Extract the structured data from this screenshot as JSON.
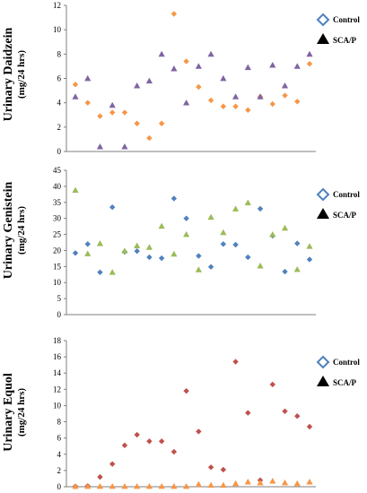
{
  "chart_data": [
    {
      "type": "scatter",
      "ylabel": "Urinary Daidzein",
      "yunit": "(mg/24 hrs)",
      "ylim": [
        0,
        12
      ],
      "yticks": [
        0,
        2,
        4,
        6,
        8,
        10,
        12
      ],
      "grid": false,
      "legend_position": "top-right",
      "series": [
        {
          "name": "Control",
          "marker": "diamond-outline",
          "color": "#4f81bd",
          "values": [
            5.5,
            4.0,
            2.9,
            3.2,
            3.2,
            2.3,
            1.1,
            2.3,
            11.3,
            7.4,
            5.3,
            4.2,
            3.7,
            3.7,
            3.4,
            4.5,
            3.9,
            4.6,
            4.1,
            7.2
          ]
        },
        {
          "name": "SCA/P",
          "marker": "triangle",
          "color": "#000000",
          "values": [
            4.5,
            6.0,
            0.4,
            3.8,
            0.4,
            5.4,
            5.8,
            8.0,
            6.8,
            4.0,
            7.0,
            8.0,
            6.0,
            4.5,
            6.9,
            4.5,
            7.1,
            5.4,
            7.0,
            8.0
          ]
        }
      ],
      "plotted": [
        {
          "color": "#f79646",
          "shape": "diamond",
          "values": [
            5.5,
            4.0,
            2.9,
            3.2,
            3.2,
            2.3,
            1.1,
            2.3,
            11.3,
            7.4,
            5.3,
            4.2,
            3.7,
            3.7,
            3.4,
            4.5,
            3.9,
            4.6,
            4.1,
            7.2
          ]
        },
        {
          "color": "#8064a2",
          "shape": "triangle",
          "values": [
            4.5,
            6.0,
            0.4,
            3.8,
            0.4,
            5.4,
            5.8,
            8.0,
            6.8,
            4.0,
            7.0,
            8.0,
            6.0,
            4.5,
            6.9,
            4.5,
            7.1,
            5.4,
            7.0,
            8.0
          ]
        }
      ]
    },
    {
      "type": "scatter",
      "ylabel": "Urinary Genistein",
      "yunit": "(mg/24 hrs)",
      "ylim": [
        0,
        45
      ],
      "yticks": [
        0,
        5,
        10,
        15,
        20,
        25,
        30,
        35,
        40,
        45
      ],
      "grid": false,
      "legend_position": "top-right",
      "series": [
        {
          "name": "Control",
          "marker": "diamond-outline",
          "color": "#4f81bd",
          "values": [
            19.2,
            22.0,
            13.2,
            33.5,
            19.6,
            19.8,
            17.9,
            17.6,
            36.2,
            30.0,
            18.3,
            14.9,
            22.0,
            21.8,
            17.9,
            33.0,
            24.6,
            13.4,
            22.2,
            17.2
          ]
        },
        {
          "name": "SCA/P",
          "marker": "triangle",
          "color": "#000000",
          "values": [
            38.8,
            19.0,
            22.2,
            13.2,
            19.9,
            21.5,
            21.0,
            27.6,
            18.9,
            25.0,
            14.0,
            30.4,
            25.6,
            33.0,
            34.9,
            15.2,
            25.0,
            27.0,
            14.1,
            21.3
          ]
        }
      ],
      "plotted": [
        {
          "color": "#4f81bd",
          "shape": "diamond",
          "values": [
            19.2,
            22.0,
            13.2,
            33.5,
            19.6,
            19.8,
            17.9,
            17.6,
            36.2,
            30.0,
            18.3,
            14.9,
            22.0,
            21.8,
            17.9,
            33.0,
            24.6,
            13.4,
            22.2,
            17.2
          ]
        },
        {
          "color": "#9bbb59",
          "shape": "triangle",
          "values": [
            38.8,
            19.0,
            22.2,
            13.2,
            19.9,
            21.5,
            21.0,
            27.6,
            18.9,
            25.0,
            14.0,
            30.4,
            25.6,
            33.0,
            34.9,
            15.2,
            25.0,
            27.0,
            14.1,
            21.3
          ]
        }
      ]
    },
    {
      "type": "scatter",
      "ylabel": "Urinary Equol",
      "yunit": "(mg/24 hrs)",
      "ylim": [
        0,
        18
      ],
      "yticks": [
        0,
        2,
        4,
        6,
        8,
        10,
        12,
        14,
        16,
        18
      ],
      "grid": false,
      "legend_position": "top-right",
      "series": [
        {
          "name": "Control",
          "marker": "diamond-outline",
          "color": "#4f81bd",
          "values": [
            0.05,
            0.1,
            1.2,
            2.8,
            5.1,
            6.4,
            5.6,
            5.6,
            4.3,
            11.8,
            6.8,
            2.4,
            2.1,
            15.4,
            9.1,
            0.8,
            12.6,
            9.3,
            8.7,
            7.4
          ]
        },
        {
          "name": "SCA/P",
          "marker": "triangle",
          "color": "#000000",
          "values": [
            0.05,
            0.05,
            0.05,
            0.05,
            0.05,
            0.05,
            0.05,
            0.05,
            0.05,
            0.05,
            0.3,
            0.2,
            0.2,
            0.4,
            0.6,
            0.5,
            0.7,
            0.5,
            0.4,
            0.6
          ]
        }
      ],
      "plotted": [
        {
          "color": "#c0504d",
          "shape": "diamond",
          "values": [
            0.05,
            0.1,
            1.2,
            2.8,
            5.1,
            6.4,
            5.6,
            5.6,
            4.3,
            11.8,
            6.8,
            2.4,
            2.1,
            15.4,
            9.1,
            0.8,
            12.6,
            9.3,
            8.7,
            7.4
          ]
        },
        {
          "color": "#f79646",
          "shape": "triangle",
          "values": [
            0.05,
            0.05,
            0.05,
            0.05,
            0.05,
            0.05,
            0.05,
            0.05,
            0.05,
            0.05,
            0.3,
            0.2,
            0.2,
            0.4,
            0.6,
            0.5,
            0.7,
            0.5,
            0.4,
            0.6
          ]
        }
      ]
    }
  ]
}
